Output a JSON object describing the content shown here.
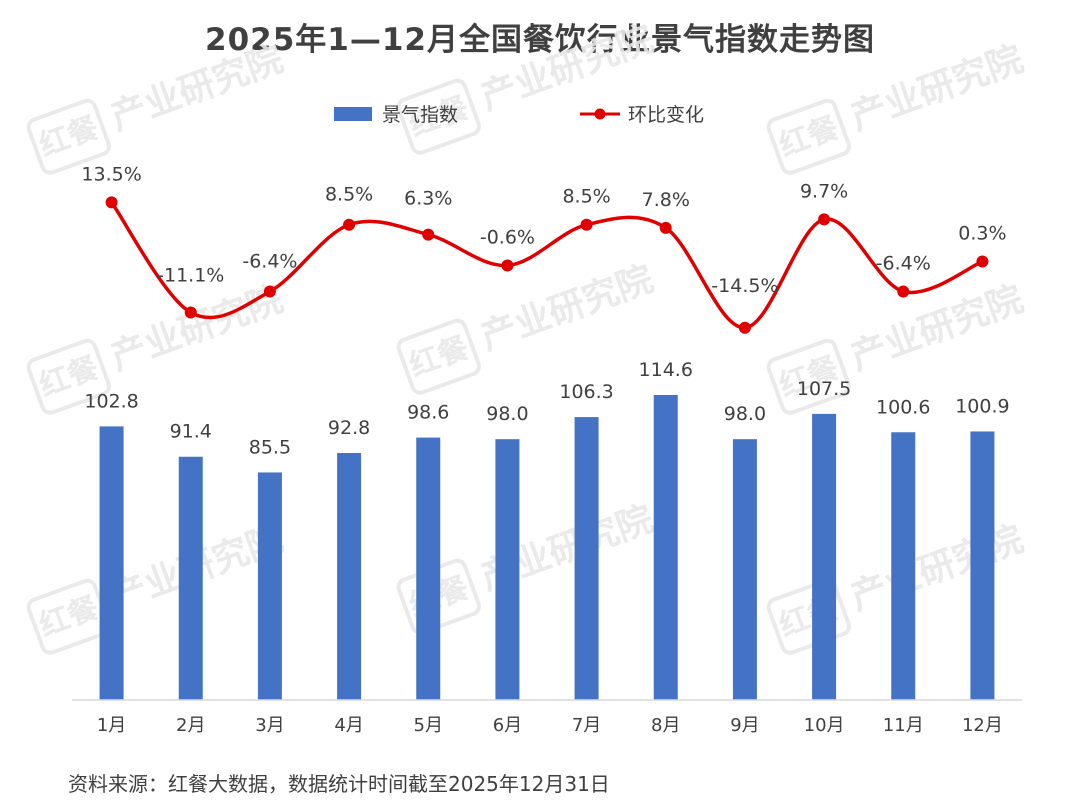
{
  "title": "2025年1—12月全国餐饮行业景气指数走势图",
  "source": "资料来源：红餐大数据，数据统计时间截至2025年12月31日",
  "watermark": {
    "brand": "红餐",
    "text": "产业研究院",
    "color": "#e8e8e8"
  },
  "legend": {
    "position": "top-center"
  },
  "chart_data": {
    "type": "bar+line",
    "categories": [
      "1月",
      "2月",
      "3月",
      "4月",
      "5月",
      "6月",
      "7月",
      "8月",
      "9月",
      "10月",
      "11月",
      "12月"
    ],
    "series": [
      {
        "name": "景气指数",
        "type": "bar",
        "color": "#4472c4",
        "values": [
          102.8,
          91.4,
          85.5,
          92.8,
          98.6,
          98.0,
          106.3,
          114.6,
          98.0,
          107.5,
          100.6,
          100.9
        ],
        "labels": [
          "102.8",
          "91.4",
          "85.5",
          "92.8",
          "98.6",
          "98.0",
          "106.3",
          "114.6",
          "98.0",
          "107.5",
          "100.6",
          "100.9"
        ]
      },
      {
        "name": "环比变化",
        "type": "line",
        "color": "#e00000",
        "smooth": true,
        "values": [
          13.5,
          -11.1,
          -6.4,
          8.5,
          6.3,
          -0.6,
          8.5,
          7.8,
          -14.5,
          9.7,
          -6.4,
          0.3
        ],
        "labels": [
          "13.5%",
          "-11.1%",
          "-6.4%",
          "8.5%",
          "6.3%",
          "-0.6%",
          "8.5%",
          "7.8%",
          "-14.5%",
          "9.7%",
          "-6.4%",
          "0.3%"
        ]
      }
    ],
    "grid": false
  }
}
